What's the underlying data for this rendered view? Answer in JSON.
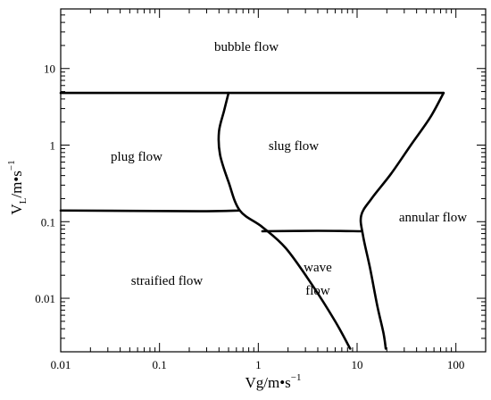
{
  "map": {
    "xaxis": {
      "label_main": "Vg/m•s",
      "label_exp": "−1",
      "scale": "log",
      "range": [
        0.01,
        200
      ],
      "ticks": [
        "0.01",
        "0.1",
        "1",
        "10",
        "100"
      ]
    },
    "yaxis": {
      "label_main": "V",
      "label_sub": "L",
      "label_rest": "/m•s",
      "label_exp": "−1",
      "scale": "log",
      "range": [
        0.002,
        60
      ],
      "ticks": [
        "0.01",
        "0.1",
        "1",
        "10"
      ]
    },
    "regions": {
      "bubble": "bubble flow",
      "plug": "plug flow",
      "slug": "slug flow",
      "annular": "annular flow",
      "stratified": "straified flow",
      "wave_line1": "wave",
      "wave_line2": "flow"
    },
    "boundaries": [
      {
        "name": "top-boundary",
        "points": [
          [
            0.01,
            4.8
          ],
          [
            75,
            4.8
          ]
        ]
      },
      {
        "name": "plug-slug-boundary",
        "points": [
          [
            0.5,
            4.8
          ],
          [
            0.45,
            2.8
          ],
          [
            0.4,
            1.5
          ],
          [
            0.41,
            0.75
          ],
          [
            0.5,
            0.33
          ],
          [
            0.65,
            0.14
          ],
          [
            1.1,
            0.085
          ],
          [
            1.9,
            0.045
          ],
          [
            3.5,
            0.015
          ],
          [
            6,
            0.005
          ],
          [
            8.5,
            0.0022
          ]
        ]
      },
      {
        "name": "plug-stratified-boundary",
        "points": [
          [
            0.01,
            0.14
          ],
          [
            0.25,
            0.137
          ],
          [
            0.65,
            0.14
          ]
        ]
      },
      {
        "name": "wave-top-boundary",
        "points": [
          [
            1.1,
            0.075
          ],
          [
            4,
            0.076
          ],
          [
            11,
            0.075
          ]
        ]
      },
      {
        "name": "slug-annular-boundary",
        "points": [
          [
            75,
            4.8
          ],
          [
            55,
            2.3
          ],
          [
            35,
            1.0
          ],
          [
            22,
            0.42
          ],
          [
            14,
            0.2
          ],
          [
            11,
            0.12
          ],
          [
            11.5,
            0.065
          ],
          [
            13.5,
            0.025
          ],
          [
            16,
            0.008
          ],
          [
            18.5,
            0.0035
          ],
          [
            19.5,
            0.0022
          ]
        ]
      }
    ]
  }
}
